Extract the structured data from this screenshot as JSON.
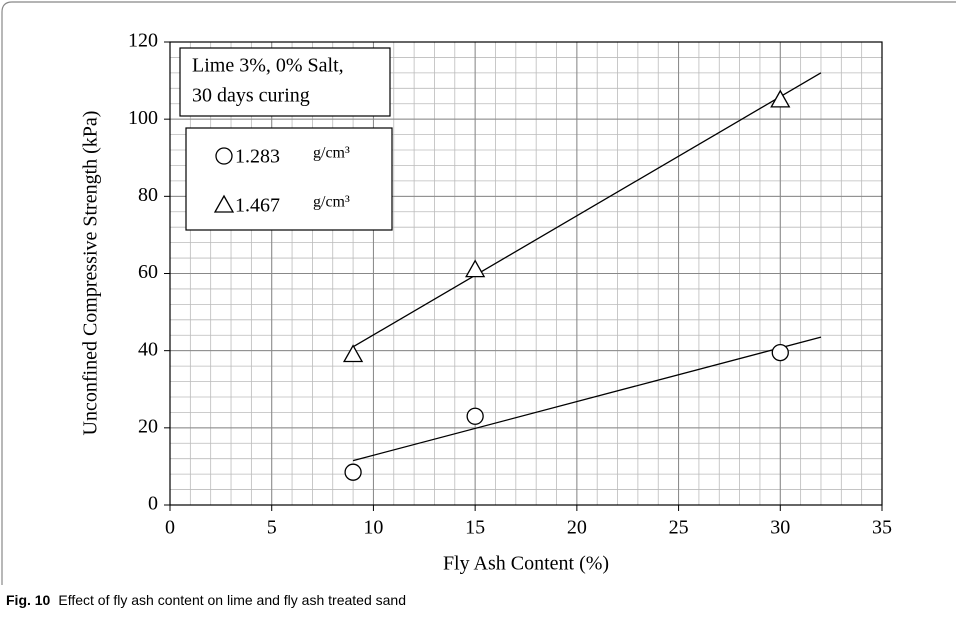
{
  "chart_data": {
    "type": "scatter",
    "xlabel": "Fly Ash Content (%)",
    "ylabel": "Unconfined Compressive Strength (kPa)",
    "xlim": [
      0,
      35
    ],
    "xticks": [
      0,
      5,
      10,
      15,
      20,
      25,
      30,
      35
    ],
    "ylim": [
      0,
      120
    ],
    "yticks": [
      0,
      20,
      40,
      60,
      80,
      100,
      120
    ],
    "grid": true,
    "minor_grid_step": {
      "x": 1,
      "y": 4
    },
    "annotation": [
      "Lime 3%, 0% Salt,",
      "30 days curing"
    ],
    "legend_position": "upper left",
    "series": [
      {
        "name": "1.283",
        "unit": "g/cm³",
        "marker": "circle",
        "color": "#000000",
        "x": [
          9,
          15,
          30
        ],
        "values": [
          8.5,
          23,
          39.5
        ],
        "trendline": {
          "x": [
            9,
            32
          ],
          "values": [
            11.5,
            43.5
          ]
        }
      },
      {
        "name": "1.467",
        "unit": "g/cm³",
        "marker": "triangle",
        "color": "#000000",
        "x": [
          9,
          15,
          30
        ],
        "values": [
          39,
          61,
          105
        ],
        "trendline": {
          "x": [
            9,
            32
          ],
          "values": [
            41,
            112
          ]
        }
      }
    ]
  },
  "caption": {
    "label": "Fig. 10",
    "text": "Effect of fly ash content on lime and fly ash treated sand"
  }
}
